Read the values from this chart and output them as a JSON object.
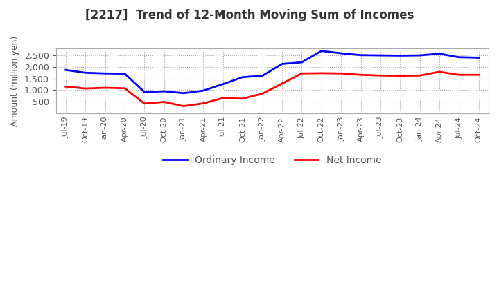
{
  "title": "[2217]  Trend of 12-Month Moving Sum of Incomes",
  "ylabel": "Amount (million yen)",
  "ordinary_income": {
    "label": "Ordinary Income",
    "color": "#0000FF",
    "x_labels": [
      "Jul-19",
      "Oct-19",
      "Jan-20",
      "Apr-20",
      "Jul-20",
      "Oct-20",
      "Jan-21",
      "Apr-21",
      "Jul-21",
      "Oct-21",
      "Jan-22",
      "Apr-22",
      "Jul-22",
      "Oct-22",
      "Jan-23",
      "Apr-23",
      "Jul-23",
      "Oct-23",
      "Jan-24",
      "Apr-24",
      "Jul-24",
      "Oct-24"
    ],
    "values": [
      1870,
      1750,
      1720,
      1710,
      920,
      950,
      870,
      980,
      1260,
      1560,
      1620,
      2130,
      2200,
      2690,
      2590,
      2510,
      2500,
      2490,
      2500,
      2570,
      2420,
      2400
    ]
  },
  "net_income": {
    "label": "Net Income",
    "color": "#FF0000",
    "x_labels": [
      "Jul-19",
      "Oct-19",
      "Jan-20",
      "Apr-20",
      "Jul-20",
      "Oct-20",
      "Jan-21",
      "Apr-21",
      "Jul-21",
      "Oct-21",
      "Jan-22",
      "Apr-22",
      "Jul-22",
      "Oct-22",
      "Jan-23",
      "Apr-23",
      "Jul-23",
      "Oct-23",
      "Jan-24",
      "Apr-24",
      "Jul-24",
      "Oct-24"
    ],
    "values": [
      1150,
      1070,
      1100,
      1080,
      420,
      490,
      310,
      430,
      660,
      630,
      850,
      1280,
      1720,
      1730,
      1720,
      1660,
      1630,
      1620,
      1630,
      1790,
      1660,
      1660
    ]
  },
  "ylim": [
    0,
    2800
  ],
  "yticks": [
    500,
    1000,
    1500,
    2000,
    2500
  ],
  "background_color": "#ffffff",
  "grid_color": "#999999",
  "title_fontsize": 12,
  "axis_fontsize": 9,
  "legend_fontsize": 10,
  "title_color": "#333333",
  "text_color": "#555555"
}
